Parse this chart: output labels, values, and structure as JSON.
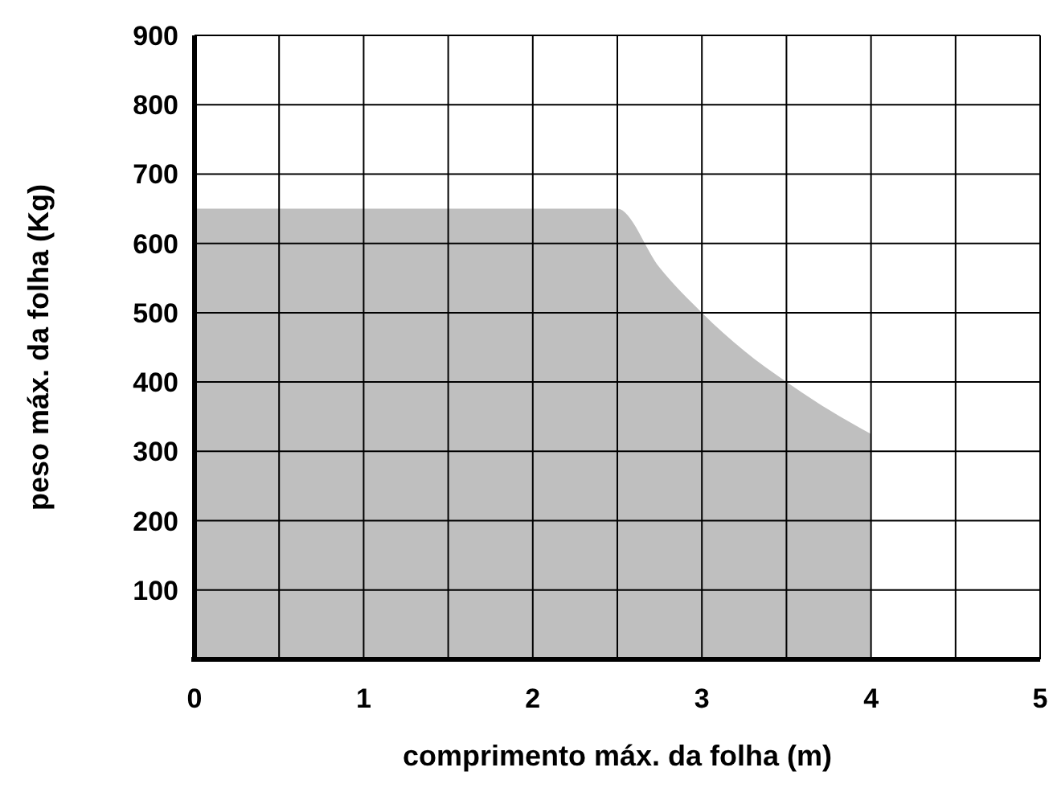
{
  "chart_data": {
    "type": "area",
    "xlabel": "comprimento máx. da folha (m)",
    "ylabel": "peso máx. da folha (Kg)",
    "x": [
      0,
      2.5,
      2.75,
      3,
      3.25,
      3.5,
      3.75,
      4
    ],
    "values": [
      650,
      650,
      565,
      500,
      445,
      400,
      360,
      325
    ],
    "color": "#bfbfbf",
    "xlim": [
      0,
      5
    ],
    "ylim": [
      0,
      900
    ],
    "xticks": [
      0,
      {
        "value": 0.5,
        "label": null
      },
      1,
      {
        "value": 1.5,
        "label": null
      },
      2,
      {
        "value": 2.5,
        "label": null
      },
      3,
      {
        "value": 3.5,
        "label": null
      },
      4,
      {
        "value": 4.5,
        "label": null
      },
      5
    ],
    "yticks": [
      100,
      200,
      300,
      400,
      500,
      600,
      700,
      800,
      900
    ],
    "grid": true
  }
}
